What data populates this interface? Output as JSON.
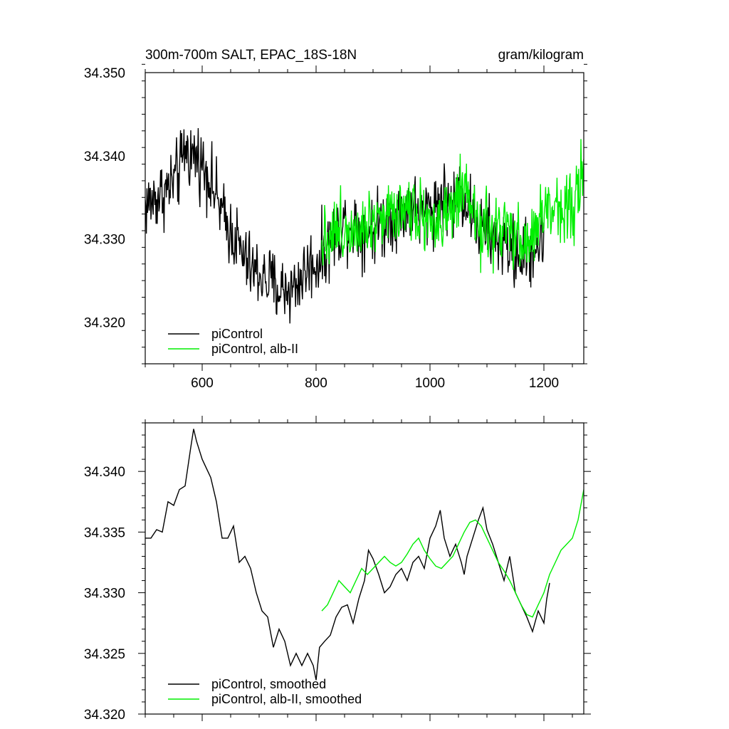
{
  "chart_data": [
    {
      "type": "line",
      "title_left": "300m-700m SALT, EPAC_18S-18N",
      "title_right": "gram/kilogram",
      "xlim": [
        500,
        1270
      ],
      "ylim": [
        34.315,
        34.35
      ],
      "xticks": [
        600,
        800,
        1000,
        1200
      ],
      "xtick_labels": [
        "600",
        "800",
        "1000",
        "1200"
      ],
      "yticks": [
        34.32,
        34.33,
        34.34,
        34.35
      ],
      "ytick_labels": [
        "34.320",
        "34.330",
        "34.340",
        "34.350"
      ],
      "legend_position": "bottom-left",
      "series": [
        {
          "name": "piControl",
          "color": "#000000",
          "x_start": 500,
          "x_end": 1200,
          "points": [
            [
              500,
              34.334
            ],
            [
              520,
              34.335
            ],
            [
              540,
              34.336
            ],
            [
              560,
              34.338
            ],
            [
              570,
              34.341
            ],
            [
              580,
              34.34
            ],
            [
              590,
              34.34
            ],
            [
              600,
              34.339
            ],
            [
              610,
              34.338
            ],
            [
              620,
              34.336
            ],
            [
              630,
              34.334
            ],
            [
              640,
              34.332
            ],
            [
              650,
              34.331
            ],
            [
              660,
              34.33
            ],
            [
              670,
              34.328
            ],
            [
              680,
              34.327
            ],
            [
              690,
              34.326
            ],
            [
              700,
              34.326
            ],
            [
              710,
              34.325
            ],
            [
              720,
              34.325
            ],
            [
              730,
              34.324
            ],
            [
              740,
              34.324
            ],
            [
              750,
              34.324
            ],
            [
              760,
              34.324
            ],
            [
              770,
              34.325
            ],
            [
              780,
              34.326
            ],
            [
              790,
              34.327
            ],
            [
              800,
              34.327
            ],
            [
              810,
              34.328
            ],
            [
              820,
              34.329
            ],
            [
              830,
              34.33
            ],
            [
              840,
              34.331
            ],
            [
              850,
              34.332
            ],
            [
              860,
              34.332
            ],
            [
              870,
              34.332
            ],
            [
              880,
              34.331
            ],
            [
              890,
              34.331
            ],
            [
              900,
              34.331
            ],
            [
              910,
              34.332
            ],
            [
              920,
              34.332
            ],
            [
              930,
              34.333
            ],
            [
              940,
              34.333
            ],
            [
              950,
              34.333
            ],
            [
              960,
              34.334
            ],
            [
              970,
              34.334
            ],
            [
              980,
              34.333
            ],
            [
              990,
              34.333
            ],
            [
              1000,
              34.334
            ],
            [
              1010,
              34.334
            ],
            [
              1020,
              34.335
            ],
            [
              1030,
              34.335
            ],
            [
              1040,
              34.334
            ],
            [
              1050,
              34.336
            ],
            [
              1060,
              34.335
            ],
            [
              1070,
              34.334
            ],
            [
              1080,
              34.332
            ],
            [
              1090,
              34.331
            ],
            [
              1100,
              34.331
            ],
            [
              1110,
              34.33
            ],
            [
              1120,
              34.33
            ],
            [
              1130,
              34.329
            ],
            [
              1140,
              34.329
            ],
            [
              1150,
              34.328
            ],
            [
              1160,
              34.328
            ],
            [
              1170,
              34.328
            ],
            [
              1180,
              34.329
            ],
            [
              1190,
              34.329
            ],
            [
              1200,
              34.33
            ]
          ],
          "noise_amplitude": 0.0035
        },
        {
          "name": "piControl, alb-II",
          "color": "#00ee00",
          "x_start": 810,
          "x_end": 1270,
          "points": [
            [
              810,
              34.33
            ],
            [
              830,
              34.331
            ],
            [
              850,
              34.331
            ],
            [
              870,
              34.332
            ],
            [
              890,
              34.332
            ],
            [
              910,
              34.333
            ],
            [
              930,
              34.333
            ],
            [
              950,
              34.334
            ],
            [
              970,
              34.334
            ],
            [
              990,
              34.333
            ],
            [
              1000,
              34.332
            ],
            [
              1010,
              34.332
            ],
            [
              1030,
              34.332
            ],
            [
              1050,
              34.335
            ],
            [
              1070,
              34.334
            ],
            [
              1090,
              34.331
            ],
            [
              1110,
              34.331
            ],
            [
              1130,
              34.331
            ],
            [
              1150,
              34.33
            ],
            [
              1170,
              34.329
            ],
            [
              1190,
              34.332
            ],
            [
              1200,
              34.333
            ],
            [
              1220,
              34.334
            ],
            [
              1240,
              34.334
            ],
            [
              1250,
              34.334
            ],
            [
              1260,
              34.336
            ],
            [
              1270,
              34.338
            ]
          ],
          "noise_amplitude": 0.0035
        }
      ]
    },
    {
      "type": "line",
      "xlim": [
        500,
        1270
      ],
      "ylim": [
        34.32,
        34.344
      ],
      "xticks": [
        600,
        800,
        1000,
        1200
      ],
      "yticks": [
        34.32,
        34.325,
        34.33,
        34.335,
        34.34
      ],
      "ytick_labels": [
        "34.320",
        "34.325",
        "34.330",
        "34.335",
        "34.340"
      ],
      "legend_position": "bottom-left",
      "series": [
        {
          "name": "piControl, smoothed",
          "color": "#000000",
          "points": [
            [
              500,
              34.3345
            ],
            [
              510,
              34.3345
            ],
            [
              520,
              34.3352
            ],
            [
              530,
              34.335
            ],
            [
              540,
              34.3375
            ],
            [
              550,
              34.3372
            ],
            [
              560,
              34.3385
            ],
            [
              570,
              34.3388
            ],
            [
              580,
              34.342
            ],
            [
              585,
              34.3435
            ],
            [
              590,
              34.3425
            ],
            [
              600,
              34.341
            ],
            [
              610,
              34.34
            ],
            [
              615,
              34.3395
            ],
            [
              625,
              34.3375
            ],
            [
              635,
              34.3345
            ],
            [
              645,
              34.3345
            ],
            [
              655,
              34.3355
            ],
            [
              665,
              34.3325
            ],
            [
              675,
              34.333
            ],
            [
              685,
              34.332
            ],
            [
              695,
              34.33
            ],
            [
              705,
              34.3285
            ],
            [
              715,
              34.328
            ],
            [
              725,
              34.3255
            ],
            [
              735,
              34.327
            ],
            [
              745,
              34.326
            ],
            [
              755,
              34.324
            ],
            [
              765,
              34.325
            ],
            [
              775,
              34.324
            ],
            [
              785,
              34.325
            ],
            [
              795,
              34.324
            ],
            [
              800,
              34.3228
            ],
            [
              806,
              34.3255
            ],
            [
              815,
              34.326
            ],
            [
              825,
              34.3265
            ],
            [
              835,
              34.328
            ],
            [
              845,
              34.3288
            ],
            [
              855,
              34.329
            ],
            [
              865,
              34.3275
            ],
            [
              875,
              34.3295
            ],
            [
              885,
              34.331
            ],
            [
              892,
              34.3335
            ],
            [
              900,
              34.3328
            ],
            [
              910,
              34.3315
            ],
            [
              920,
              34.33
            ],
            [
              930,
              34.3305
            ],
            [
              940,
              34.3315
            ],
            [
              950,
              34.332
            ],
            [
              960,
              34.331
            ],
            [
              970,
              34.3325
            ],
            [
              980,
              34.333
            ],
            [
              990,
              34.332
            ],
            [
              1000,
              34.3345
            ],
            [
              1010,
              34.3355
            ],
            [
              1018,
              34.3368
            ],
            [
              1025,
              34.3345
            ],
            [
              1035,
              34.333
            ],
            [
              1045,
              34.334
            ],
            [
              1055,
              34.3325
            ],
            [
              1060,
              34.3315
            ],
            [
              1065,
              34.333
            ],
            [
              1075,
              34.3345
            ],
            [
              1085,
              34.336
            ],
            [
              1093,
              34.337
            ],
            [
              1100,
              34.3352
            ],
            [
              1110,
              34.334
            ],
            [
              1120,
              34.3325
            ],
            [
              1130,
              34.331
            ],
            [
              1140,
              34.333
            ],
            [
              1150,
              34.33
            ],
            [
              1160,
              34.329
            ],
            [
              1170,
              34.328
            ],
            [
              1180,
              34.3268
            ],
            [
              1190,
              34.3285
            ],
            [
              1200,
              34.3275
            ],
            [
              1205,
              34.3295
            ],
            [
              1210,
              34.3308
            ]
          ]
        },
        {
          "name": "piControl, alb-II, smoothed",
          "color": "#00ee00",
          "points": [
            [
              810,
              34.3285
            ],
            [
              820,
              34.329
            ],
            [
              830,
              34.33
            ],
            [
              840,
              34.331
            ],
            [
              850,
              34.3305
            ],
            [
              860,
              34.33
            ],
            [
              870,
              34.331
            ],
            [
              880,
              34.332
            ],
            [
              890,
              34.3315
            ],
            [
              900,
              34.332
            ],
            [
              910,
              34.3325
            ],
            [
              920,
              34.333
            ],
            [
              930,
              34.3325
            ],
            [
              940,
              34.3322
            ],
            [
              950,
              34.3325
            ],
            [
              960,
              34.3332
            ],
            [
              970,
              34.334
            ],
            [
              980,
              34.3345
            ],
            [
              990,
              34.3335
            ],
            [
              1000,
              34.3328
            ],
            [
              1010,
              34.3322
            ],
            [
              1020,
              34.332
            ],
            [
              1030,
              34.3325
            ],
            [
              1040,
              34.333
            ],
            [
              1050,
              34.334
            ],
            [
              1060,
              34.335
            ],
            [
              1070,
              34.3358
            ],
            [
              1080,
              34.336
            ],
            [
              1090,
              34.3355
            ],
            [
              1100,
              34.3345
            ],
            [
              1110,
              34.3335
            ],
            [
              1120,
              34.3325
            ],
            [
              1130,
              34.3318
            ],
            [
              1140,
              34.331
            ],
            [
              1150,
              34.33
            ],
            [
              1160,
              34.329
            ],
            [
              1170,
              34.3282
            ],
            [
              1180,
              34.328
            ],
            [
              1190,
              34.329
            ],
            [
              1200,
              34.33
            ],
            [
              1210,
              34.3315
            ],
            [
              1220,
              34.3325
            ],
            [
              1230,
              34.3335
            ],
            [
              1240,
              34.334
            ],
            [
              1250,
              34.3345
            ],
            [
              1260,
              34.336
            ],
            [
              1270,
              34.3385
            ]
          ]
        }
      ]
    }
  ]
}
